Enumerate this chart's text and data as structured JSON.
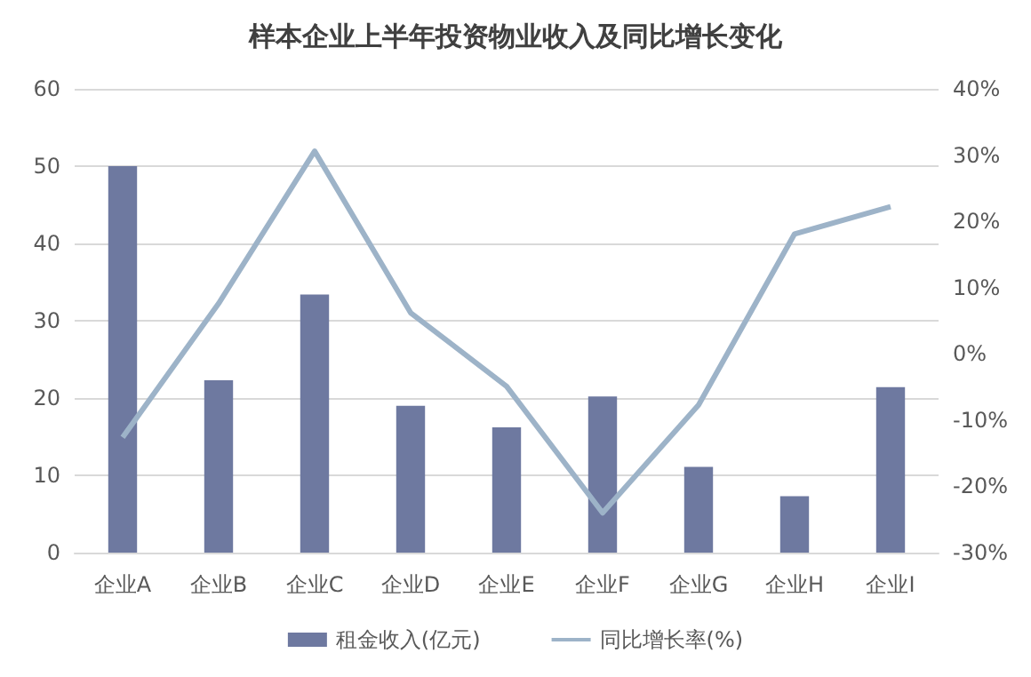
{
  "chart_data": {
    "type": "bar",
    "title": "样本企业上半年投资物业收入及同比增长变化",
    "categories": [
      "企业A",
      "企业B",
      "企业C",
      "企业D",
      "企业E",
      "企业F",
      "企业G",
      "企业H",
      "企业I"
    ],
    "series": [
      {
        "name": "租金收入(亿元)",
        "color": "#6e79a0",
        "values": [
          50.0,
          22.3,
          33.4,
          19.0,
          16.2,
          20.2,
          11.1,
          7.3,
          21.4
        ]
      },
      {
        "name": "同比增长率(%)",
        "type": "line",
        "axis": "y2",
        "color": "#9db3c8",
        "values": [
          -12.6,
          7.6,
          30.6,
          6.2,
          -4.9,
          -24.0,
          -7.7,
          18.1,
          22.2
        ]
      }
    ],
    "ylim": [
      0,
      60
    ],
    "yticks": [
      0,
      10,
      20,
      30,
      40,
      50,
      60
    ],
    "y2lim": [
      -30,
      40
    ],
    "y2ticks": [
      {
        "value": -30,
        "label": "-30%"
      },
      {
        "value": -20,
        "label": "-20%"
      },
      {
        "value": -10,
        "label": "-10%"
      },
      {
        "value": 0,
        "label": "0%"
      },
      {
        "value": 10,
        "label": "10%"
      },
      {
        "value": 20,
        "label": "20%"
      },
      {
        "value": 30,
        "label": "30%"
      },
      {
        "value": 40,
        "label": "40%"
      }
    ],
    "grid": "y",
    "legend": "bottom",
    "marker": "none",
    "line_style": "solid"
  }
}
